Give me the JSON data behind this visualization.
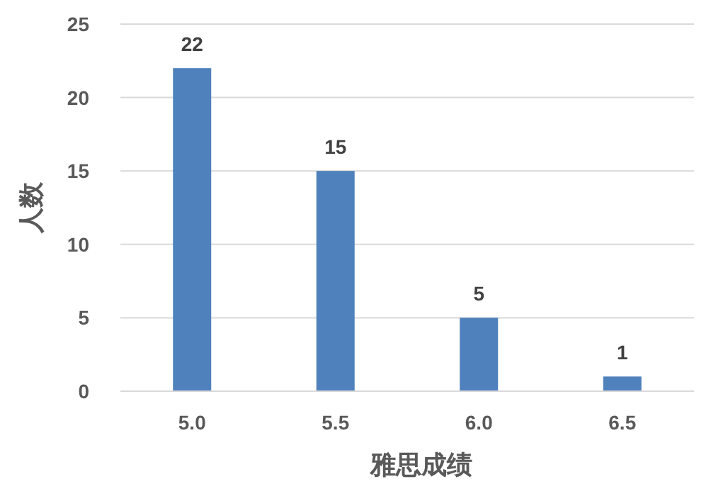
{
  "chart_data": {
    "type": "bar",
    "xlabel": "雅思成绩",
    "ylabel": "人数",
    "categories": [
      "5.0",
      "5.5",
      "6.0",
      "6.5"
    ],
    "values": [
      22,
      15,
      5,
      1
    ],
    "color": "#4f81bd",
    "ylim": [
      0,
      25
    ],
    "yticks": [
      0,
      5,
      10,
      15,
      20,
      25
    ],
    "grid": "y",
    "data_labels": true
  }
}
